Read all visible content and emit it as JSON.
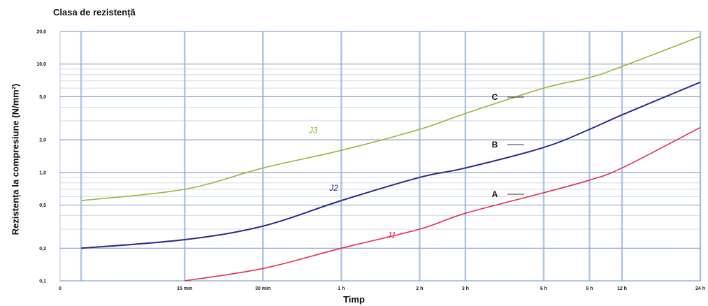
{
  "chart_data": {
    "type": "line",
    "title": "Clasa de rezistență",
    "xlabel": "Timp",
    "ylabel": "Rezistența la compresiune (N/mm²)",
    "y_scale": "log",
    "ylim": [
      0.1,
      20.0
    ],
    "y_ticks": [
      {
        "value": 0.1,
        "label": "0,1"
      },
      {
        "value": 0.2,
        "label": "0,2"
      },
      {
        "value": 0.5,
        "label": "0,5"
      },
      {
        "value": 1.0,
        "label": "1,0"
      },
      {
        "value": 2.0,
        "label": "2,0"
      },
      {
        "value": 5.0,
        "label": "5,0"
      },
      {
        "value": 10.0,
        "label": "10,0"
      },
      {
        "value": 20.0,
        "label": "20,0"
      }
    ],
    "x_unit": "hours",
    "x_scale": "log",
    "xlim": [
      0.083,
      24
    ],
    "x_ticks": [
      {
        "value": 0.083,
        "label": "0"
      },
      {
        "value": 0.25,
        "label": "15 min"
      },
      {
        "value": 0.5,
        "label": "30 min"
      },
      {
        "value": 1,
        "label": "1 h"
      },
      {
        "value": 2,
        "label": "2 h"
      },
      {
        "value": 3,
        "label": "3 h"
      },
      {
        "value": 6,
        "label": "6 h"
      },
      {
        "value": 9,
        "label": "9 h"
      },
      {
        "value": 12,
        "label": "12 h"
      },
      {
        "value": 24,
        "label": "24 h"
      }
    ],
    "grid": true,
    "series": [
      {
        "name": "J3",
        "class_label": "C",
        "color": "#9ab53a",
        "x": [
          0.1,
          0.25,
          0.5,
          1,
          2,
          3,
          6,
          9,
          12,
          24
        ],
        "y": [
          0.55,
          0.7,
          1.1,
          1.6,
          2.5,
          3.5,
          6.0,
          7.5,
          9.5,
          18.0
        ]
      },
      {
        "name": "J2",
        "class_label": "B",
        "color": "#2e2b8c",
        "x": [
          0.1,
          0.25,
          0.5,
          1,
          2,
          3,
          6,
          9,
          12,
          24
        ],
        "y": [
          0.2,
          0.24,
          0.32,
          0.55,
          0.9,
          1.1,
          1.7,
          2.5,
          3.4,
          6.8
        ]
      },
      {
        "name": "J1",
        "class_label": "A",
        "color": "#e0304e",
        "x": [
          0.25,
          0.5,
          1,
          2,
          3,
          6,
          9,
          12,
          24
        ],
        "y": [
          0.1,
          0.13,
          0.2,
          0.3,
          0.42,
          0.65,
          0.85,
          1.1,
          2.6
        ]
      }
    ]
  }
}
